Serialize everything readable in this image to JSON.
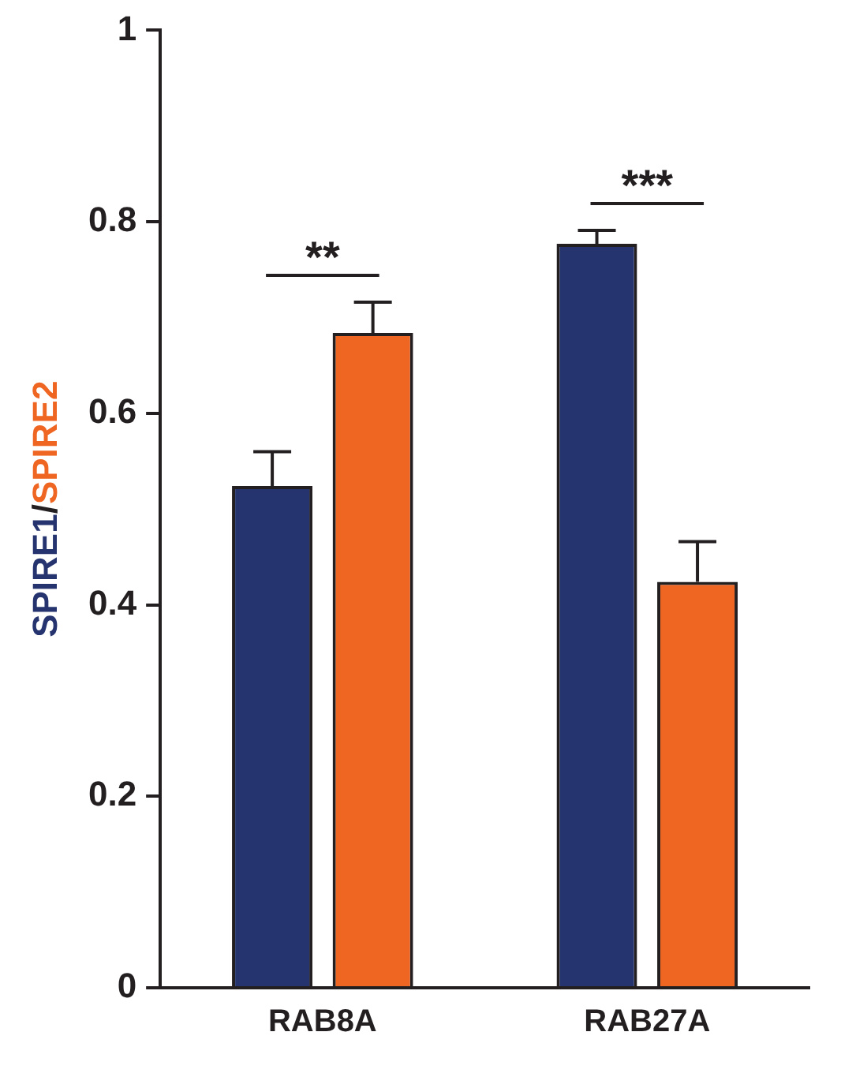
{
  "chart_data": {
    "type": "bar",
    "ylabel": "SPIRE1/SPIRE2",
    "categories": [
      "RAB8A",
      "RAB27A"
    ],
    "series": [
      {
        "color": "#25346f",
        "values": [
          0.524,
          0.777
        ],
        "errors": [
          0.036,
          0.014
        ]
      },
      {
        "color": "#ef6622",
        "values": [
          0.684,
          0.424
        ],
        "errors": [
          0.032,
          0.042
        ]
      }
    ],
    "ylim": [
      0,
      1
    ],
    "yticks": [
      0,
      0.2,
      0.4,
      0.6,
      0.8,
      1
    ],
    "annotations": [
      "**",
      "***"
    ],
    "grid": false,
    "legend": false
  }
}
